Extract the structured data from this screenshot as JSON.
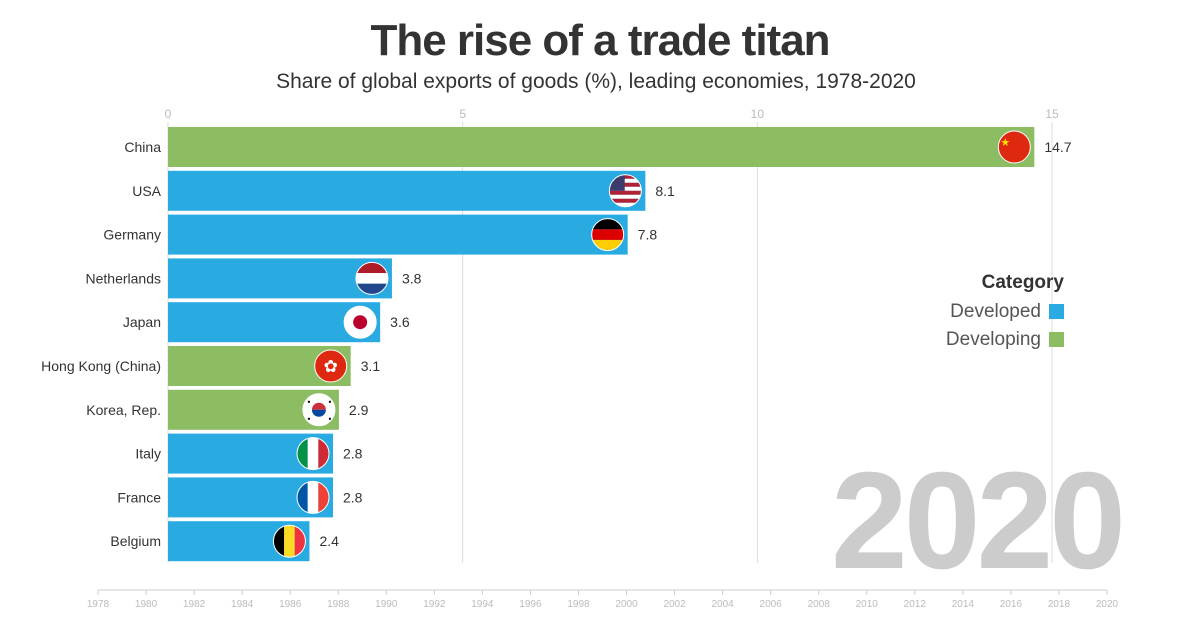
{
  "title": "The rise of a trade titan",
  "subtitle": "Share of global exports of goods (%), leading economies, 1978-2020",
  "legend": {
    "title": "Category",
    "items": [
      {
        "label": "Developed",
        "color": "#29abe2"
      },
      {
        "label": "Developing",
        "color": "#8cbd63"
      }
    ]
  },
  "current_year": "2020",
  "colors": {
    "Developed": "#29abe2",
    "Developing": "#8cbd63"
  },
  "chart_data": {
    "type": "bar",
    "orientation": "horizontal",
    "categories": [
      "China",
      "USA",
      "Germany",
      "Netherlands",
      "Japan",
      "Hong Kong (China)",
      "Korea, Rep.",
      "Italy",
      "France",
      "Belgium"
    ],
    "values": [
      14.7,
      8.1,
      7.8,
      3.8,
      3.6,
      3.1,
      2.9,
      2.8,
      2.8,
      2.4
    ],
    "value_labels": [
      "14.7",
      "8.1",
      "7.8",
      "3.8",
      "3.6",
      "3.1",
      "2.9",
      "2.8",
      "2.8",
      "2.4"
    ],
    "group": [
      "Developing",
      "Developed",
      "Developed",
      "Developed",
      "Developed",
      "Developing",
      "Developing",
      "Developed",
      "Developed",
      "Developed"
    ],
    "flag_icons": [
      "china-flag-icon",
      "usa-flag-icon",
      "germany-flag-icon",
      "netherlands-flag-icon",
      "japan-flag-icon",
      "hong-kong-flag-icon",
      "korea-flag-icon",
      "italy-flag-icon",
      "france-flag-icon",
      "belgium-flag-icon"
    ],
    "x_ticks": [
      "0",
      "5",
      "10",
      "15"
    ],
    "xlim": [
      0,
      15
    ],
    "grid": true,
    "legend_position": "right",
    "timeline": {
      "years": [
        "1978",
        "1980",
        "1982",
        "1984",
        "1986",
        "1988",
        "1990",
        "1992",
        "1994",
        "1996",
        "1998",
        "2000",
        "2002",
        "2004",
        "2006",
        "2008",
        "2010",
        "2012",
        "2014",
        "2016",
        "2018",
        "2020"
      ],
      "current": "2020"
    }
  }
}
